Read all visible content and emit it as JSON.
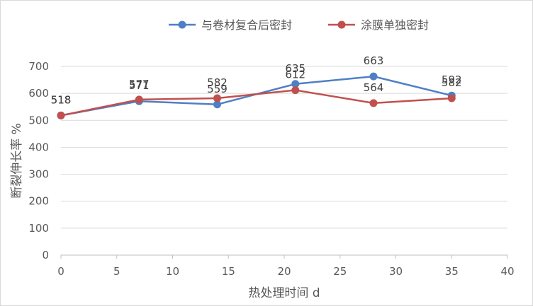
{
  "chart_data": {
    "type": "line",
    "xlabel": "热处理时间 d",
    "ylabel": "断裂伸长率 %",
    "xlim": [
      0,
      40
    ],
    "ylim": [
      0,
      700
    ],
    "xticks": [
      0,
      5,
      10,
      15,
      20,
      25,
      30,
      35,
      40
    ],
    "yticks": [
      0,
      100,
      200,
      300,
      400,
      500,
      600,
      700
    ],
    "grid": "horizontal",
    "legend_position": "top",
    "x": [
      0,
      7,
      14,
      21,
      28,
      35
    ],
    "series": [
      {
        "name": "与卷材复合后密封",
        "color": "#4f7fc4",
        "values": [
          518,
          571,
          559,
          635,
          663,
          592
        ]
      },
      {
        "name": "涂膜单独密封",
        "color": "#c0504d",
        "values": [
          518,
          577,
          582,
          612,
          564,
          582
        ]
      }
    ]
  }
}
